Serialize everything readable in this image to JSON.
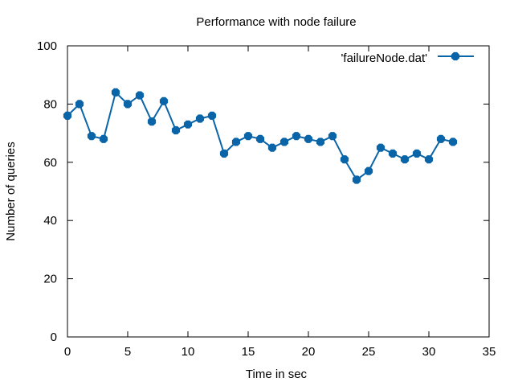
{
  "chart_data": {
    "type": "line",
    "title": "Performance with node failure",
    "xlabel": "Time in sec",
    "ylabel": "Number of queries",
    "xlim": [
      0,
      35
    ],
    "ylim": [
      0,
      100
    ],
    "xticks": [
      0,
      5,
      10,
      15,
      20,
      25,
      30,
      35
    ],
    "yticks": [
      0,
      20,
      40,
      60,
      80,
      100
    ],
    "grid": false,
    "legend_position": "top-right",
    "series": [
      {
        "name": "'failureNode.dat'",
        "color": "#0a64a8",
        "x": [
          0,
          1,
          2,
          3,
          4,
          5,
          6,
          7,
          8,
          9,
          10,
          11,
          12,
          13,
          14,
          15,
          16,
          17,
          18,
          19,
          20,
          21,
          22,
          23,
          24,
          25,
          26,
          27,
          28,
          29,
          30,
          31,
          32
        ],
        "y": [
          76,
          80,
          69,
          68,
          84,
          80,
          83,
          74,
          81,
          71,
          73,
          75,
          76,
          63,
          67,
          69,
          68,
          65,
          67,
          69,
          68,
          67,
          69,
          61,
          54,
          57,
          65,
          63,
          61,
          63,
          61,
          68,
          67
        ]
      }
    ]
  }
}
